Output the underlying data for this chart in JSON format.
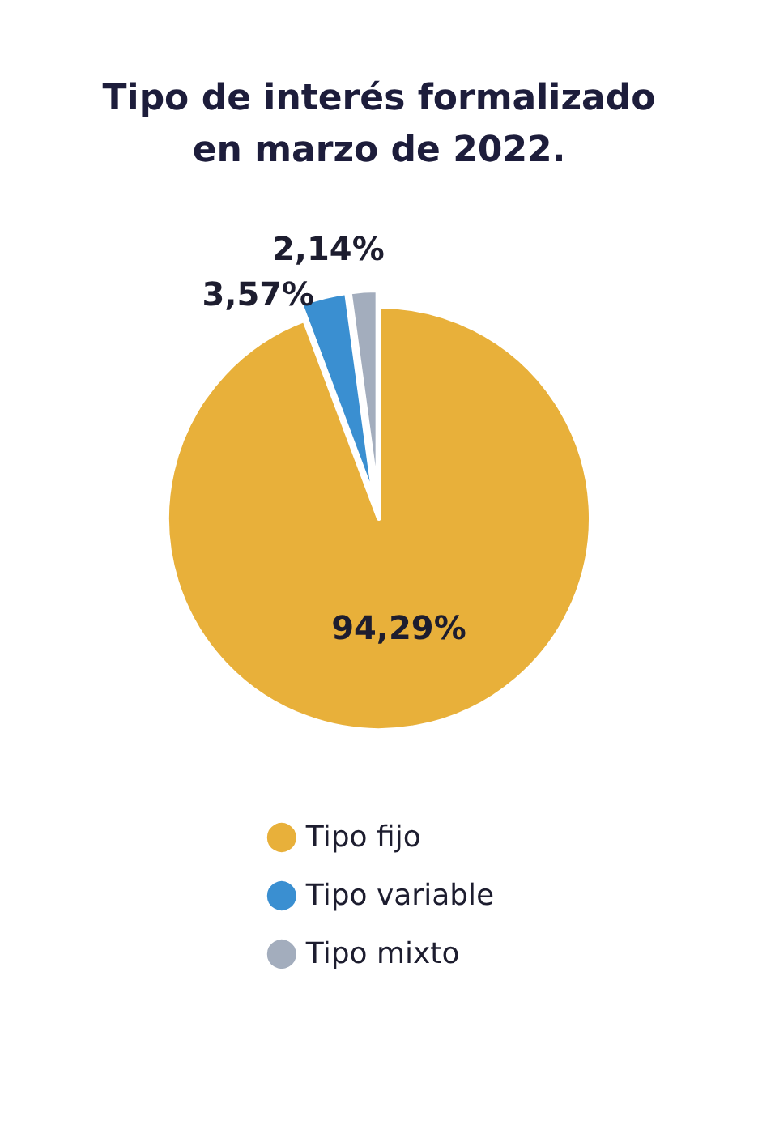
{
  "chart_data": {
    "type": "pie",
    "title": "Tipo de interés formalizado\nen marzo de 2022.",
    "categories": [
      "Tipo fijo",
      "Tipo variable",
      "Tipo mixto"
    ],
    "values": [
      94.29,
      3.57,
      2.14
    ],
    "colors": [
      "#e8b03a",
      "#3a8fd1",
      "#a3adbd"
    ],
    "value_labels": [
      "94,29%",
      "3,57%",
      "2,14%"
    ],
    "legend": "bottom"
  }
}
